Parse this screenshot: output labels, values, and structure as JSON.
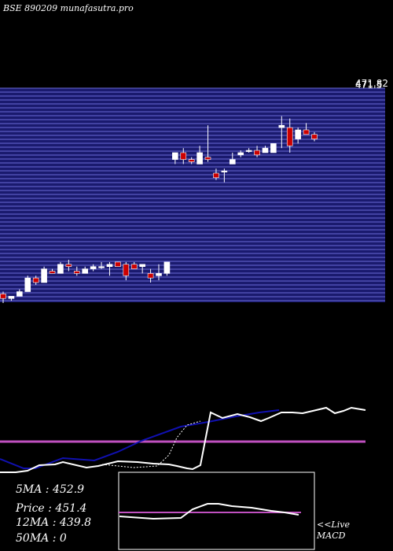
{
  "header": {
    "title": "BSE 890209 munafasutra.pro"
  },
  "price_axis": {
    "top_label": "471.82",
    "top_label_back": "471.5"
  },
  "stats": [
    {
      "label": "5MA",
      "value": "452.9"
    },
    {
      "label": "Price",
      "value": "451.4"
    },
    {
      "label": "12MA",
      "value": "439.8"
    },
    {
      "label": "50MA",
      "value": "0"
    }
  ],
  "macd_label": {
    "line1": "<<Live",
    "line2": "MACD"
  },
  "colors": {
    "band": "#1a1a6e",
    "band_line": "#6b6bd6",
    "up": "#ffffff",
    "down": "#cc0000",
    "ma_blue": "#1010b0",
    "signal": "#c050c0"
  },
  "chart_data": {
    "type": "candlestick",
    "title": "BSE 890209 munafasutra.pro",
    "ylim": [
      380,
      475
    ],
    "candles": [
      {
        "o": 384,
        "h": 385,
        "l": 380,
        "c": 382
      },
      {
        "o": 382,
        "h": 383,
        "l": 381,
        "c": 383
      },
      {
        "o": 383,
        "h": 386,
        "l": 383,
        "c": 385
      },
      {
        "o": 385,
        "h": 392,
        "l": 385,
        "c": 391
      },
      {
        "o": 391,
        "h": 392,
        "l": 388,
        "c": 389
      },
      {
        "o": 389,
        "h": 396,
        "l": 389,
        "c": 395
      },
      {
        "o": 394,
        "h": 395,
        "l": 393,
        "c": 393
      },
      {
        "o": 393,
        "h": 398,
        "l": 393,
        "c": 397
      },
      {
        "o": 397,
        "h": 399,
        "l": 394,
        "c": 396
      },
      {
        "o": 394,
        "h": 396,
        "l": 392,
        "c": 393
      },
      {
        "o": 393,
        "h": 396,
        "l": 393,
        "c": 395
      },
      {
        "o": 395,
        "h": 397,
        "l": 394,
        "c": 396
      },
      {
        "o": 396,
        "h": 398,
        "l": 395,
        "c": 396
      },
      {
        "o": 396,
        "h": 398,
        "l": 392,
        "c": 397
      },
      {
        "o": 398,
        "h": 398,
        "l": 396,
        "c": 396
      },
      {
        "o": 397,
        "h": 398,
        "l": 390,
        "c": 392
      },
      {
        "o": 397,
        "h": 398,
        "l": 395,
        "c": 395
      },
      {
        "o": 396,
        "h": 397,
        "l": 393,
        "c": 397
      },
      {
        "o": 393,
        "h": 395,
        "l": 389,
        "c": 391
      },
      {
        "o": 392,
        "h": 397,
        "l": 390,
        "c": 393
      },
      {
        "o": 393,
        "h": 398,
        "l": 392,
        "c": 398
      },
      {
        "o": 443,
        "h": 446,
        "l": 441,
        "c": 446
      },
      {
        "o": 446,
        "h": 448,
        "l": 441,
        "c": 443
      },
      {
        "o": 443,
        "h": 444,
        "l": 441,
        "c": 442
      },
      {
        "o": 441,
        "h": 449,
        "l": 441,
        "c": 446
      },
      {
        "o": 444,
        "h": 458,
        "l": 442,
        "c": 443
      },
      {
        "o": 437,
        "h": 439,
        "l": 434,
        "c": 435
      },
      {
        "o": 438,
        "h": 439,
        "l": 433,
        "c": 438
      },
      {
        "o": 441,
        "h": 446,
        "l": 441,
        "c": 443
      },
      {
        "o": 445,
        "h": 447,
        "l": 444,
        "c": 446
      },
      {
        "o": 447,
        "h": 448,
        "l": 446,
        "c": 447
      },
      {
        "o": 447,
        "h": 449,
        "l": 444,
        "c": 445
      },
      {
        "o": 446,
        "h": 449,
        "l": 446,
        "c": 448
      },
      {
        "o": 446,
        "h": 450,
        "l": 446,
        "c": 450
      },
      {
        "o": 457,
        "h": 462,
        "l": 448,
        "c": 458
      },
      {
        "o": 457,
        "h": 461,
        "l": 446,
        "c": 449
      },
      {
        "o": 452,
        "h": 457,
        "l": 450,
        "c": 456
      },
      {
        "o": 456,
        "h": 459,
        "l": 454,
        "c": 454
      },
      {
        "o": 454,
        "h": 455,
        "l": 451,
        "c": 452
      }
    ],
    "ma_blue": [
      [
        0,
        583
      ],
      [
        30,
        595
      ],
      [
        45,
        595
      ],
      [
        80,
        582
      ],
      [
        120,
        585
      ],
      [
        150,
        574
      ],
      [
        180,
        560
      ],
      [
        230,
        542
      ],
      [
        265,
        536
      ],
      [
        300,
        529
      ],
      [
        330,
        524
      ],
      [
        355,
        521
      ]
    ],
    "ma_dotted": [
      [
        130,
        590
      ],
      [
        170,
        594
      ],
      [
        200,
        592
      ],
      [
        215,
        578
      ],
      [
        225,
        556
      ],
      [
        238,
        540
      ],
      [
        255,
        535
      ]
    ],
    "price_line": [
      [
        0,
        600
      ],
      [
        20,
        600
      ],
      [
        35,
        598
      ],
      [
        50,
        591
      ],
      [
        70,
        590
      ],
      [
        80,
        587
      ],
      [
        110,
        594
      ],
      [
        125,
        592
      ],
      [
        150,
        586
      ],
      [
        175,
        587
      ],
      [
        195,
        589
      ],
      [
        215,
        590
      ],
      [
        225,
        592
      ],
      [
        238,
        595
      ],
      [
        245,
        596
      ],
      [
        255,
        591
      ],
      [
        260,
        565
      ],
      [
        268,
        524
      ],
      [
        283,
        531
      ],
      [
        302,
        526
      ],
      [
        318,
        530
      ],
      [
        332,
        535
      ],
      [
        342,
        531
      ],
      [
        358,
        524
      ],
      [
        372,
        524
      ],
      [
        385,
        525
      ],
      [
        398,
        522
      ],
      [
        415,
        518
      ],
      [
        426,
        525
      ],
      [
        437,
        522
      ],
      [
        447,
        518
      ],
      [
        465,
        521
      ]
    ],
    "signal_level": 561,
    "macd_series": [
      [
        152,
        656
      ],
      [
        195,
        659
      ],
      [
        230,
        658
      ],
      [
        245,
        647
      ],
      [
        264,
        640
      ],
      [
        278,
        640
      ],
      [
        295,
        643
      ],
      [
        320,
        645
      ],
      [
        345,
        649
      ],
      [
        362,
        651
      ],
      [
        380,
        654
      ]
    ],
    "macd_signal_level": 651
  }
}
